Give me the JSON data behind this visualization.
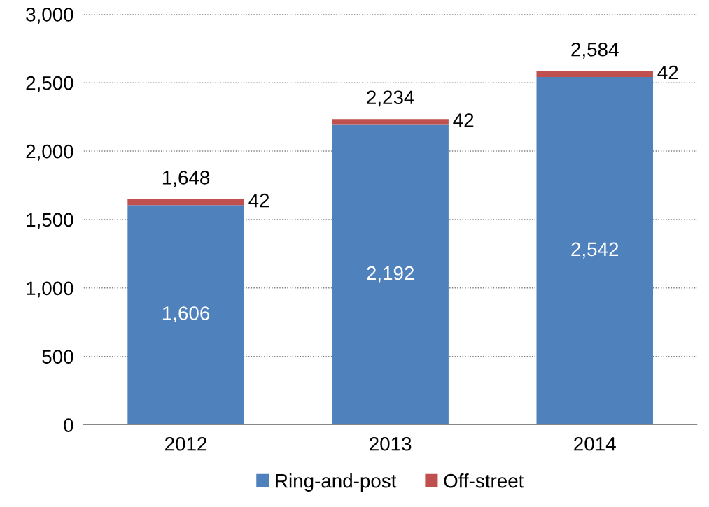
{
  "chart_data": {
    "type": "bar",
    "stacked": true,
    "categories": [
      "2012",
      "2013",
      "2014"
    ],
    "series": [
      {
        "name": "Ring-and-post",
        "color": "#4f81bd",
        "values": [
          1606,
          2192,
          2542
        ],
        "value_labels": [
          "1,606",
          "2,192",
          "2,542"
        ]
      },
      {
        "name": "Off-street",
        "color": "#c0504d",
        "values": [
          42,
          42,
          42
        ],
        "value_labels": [
          "42",
          "42",
          "42"
        ]
      }
    ],
    "totals": [
      "1,648",
      "2,234",
      "2,584"
    ],
    "ylim": [
      0,
      3000
    ],
    "yticks": [
      0,
      500,
      {
        "value": 1000,
        "label": "1,000"
      },
      {
        "value": 1500,
        "label": "1,500"
      },
      {
        "value": 2000,
        "label": "2,000"
      },
      {
        "value": 2500,
        "label": "2,500"
      },
      {
        "value": 3000,
        "label": "3,000"
      }
    ],
    "grid": "y",
    "legend": "bottom"
  }
}
